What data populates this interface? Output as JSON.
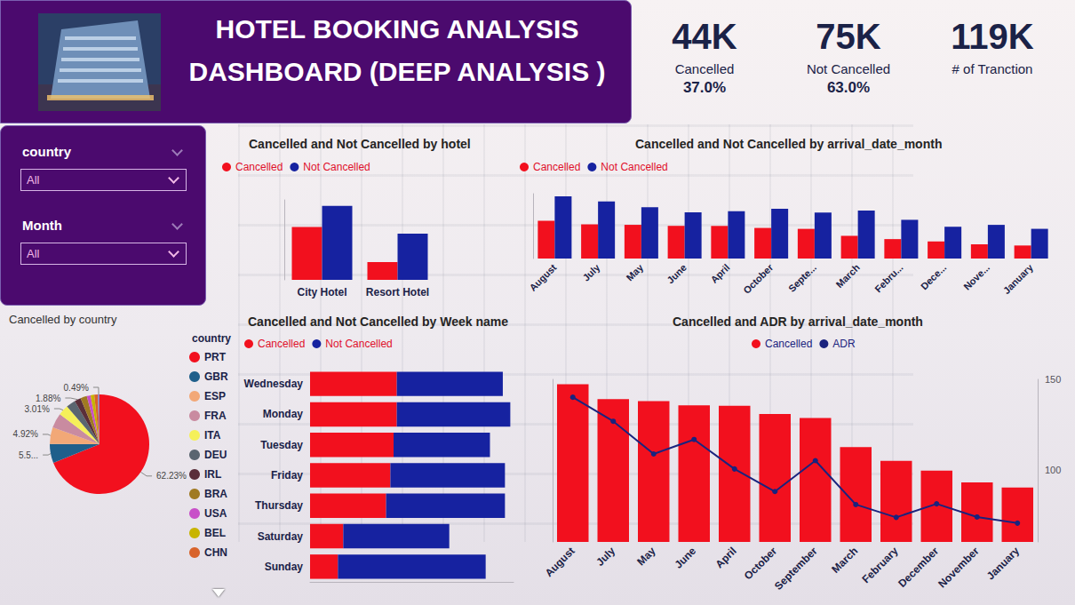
{
  "header": {
    "title": "HOTEL BOOKING ANALYSIS DASHBOARD (DEEP ANALYSIS )"
  },
  "kpis": [
    {
      "value": "44K",
      "label": "Cancelled",
      "percent": "37.0%"
    },
    {
      "value": "75K",
      "label": "Not Cancelled",
      "percent": "63.0%"
    },
    {
      "value": "119K",
      "label": "# of Tranction"
    }
  ],
  "filters": [
    {
      "label": "country",
      "selected": "All"
    },
    {
      "label": "Month",
      "selected": "All"
    }
  ],
  "chart_data": [
    {
      "type": "bar",
      "title": "Cancelled and Not Cancelled by hotel",
      "categories": [
        "City Hotel",
        "Resort Hotel"
      ],
      "series": [
        {
          "name": "Cancelled",
          "color": "#f2101e",
          "values": [
            33102,
            11122
          ]
        },
        {
          "name": "Not Cancelled",
          "color": "#1622a0",
          "values": [
            46228,
            28938
          ]
        }
      ],
      "ylim": [
        0,
        50000
      ],
      "yticks": [],
      "grid": false,
      "legend": "top-left"
    },
    {
      "type": "bar",
      "title": "Cancelled and Not Cancelled by arrival_date_month",
      "categories": [
        "August",
        "July",
        "May",
        "June",
        "April",
        "October",
        "Septe...",
        "March",
        "Febru...",
        "Dece...",
        "Nove...",
        "January"
      ],
      "series": [
        {
          "name": "Cancelled",
          "color": "#f2101e",
          "values": [
            5239,
            4742,
            4677,
            4535,
            4524,
            4246,
            4116,
            3149,
            2696,
            2371,
            1976,
            1807
          ]
        },
        {
          "name": "Not Cancelled",
          "color": "#1622a0",
          "values": [
            8638,
            7919,
            7114,
            6404,
            6565,
            6914,
            6392,
            6645,
            5372,
            4409,
            4672,
            4122
          ]
        }
      ],
      "ylim": [
        0,
        9000
      ],
      "yticks": [],
      "grid": false,
      "legend": "top-left"
    },
    {
      "type": "bar",
      "title": "Cancelled and Not Cancelled by Week name",
      "orientation": "horizontal",
      "stacked": true,
      "categories": [
        "Wednesday",
        "Monday",
        "Tuesday",
        "Friday",
        "Thursday",
        "Saturday",
        "Sunday"
      ],
      "series": [
        {
          "name": "Cancelled",
          "color": "#f2101e",
          "values": [
            8100,
            8100,
            7800,
            7500,
            7100,
            3100,
            2600
          ]
        },
        {
          "name": "Not Cancelled",
          "color": "#1622a0",
          "values": [
            9900,
            10600,
            9000,
            10700,
            11100,
            9900,
            13800
          ]
        }
      ],
      "xlim": [
        0,
        19000
      ],
      "xticks": [],
      "grid": false,
      "legend": "top-left"
    },
    {
      "type": "bar",
      "title": "Cancelled and ADR by arrival_date_month",
      "categories": [
        "August",
        "July",
        "May",
        "June",
        "April",
        "October",
        "September",
        "March",
        "February",
        "December",
        "November",
        "January"
      ],
      "series": [
        {
          "name": "Cancelled",
          "type": "bar",
          "color": "#f2101e",
          "values": [
            5239,
            4742,
            4677,
            4535,
            4524,
            4246,
            4116,
            3149,
            2696,
            2371,
            1976,
            1807
          ]
        },
        {
          "name": "ADR",
          "type": "line",
          "axis": "y2",
          "color": "#1a237e",
          "marker": "circle",
          "line_style": "solid",
          "values": [
            140.1,
            126.8,
            108.7,
            116.7,
            100.4,
            87.9,
            105.0,
            80.7,
            73.6,
            81.1,
            73.8,
            70.4
          ]
        }
      ],
      "ylim": [
        0,
        5400
      ],
      "yticks": [],
      "y2lim": [
        60,
        150
      ],
      "y2ticks": [
        100,
        150
      ],
      "grid": false,
      "legend": "top-left"
    },
    {
      "type": "pie",
      "title": "Cancelled by country",
      "legend_title": "country",
      "categories": [
        "PRT",
        "GBR",
        "ESP",
        "FRA",
        "ITA",
        "DEU",
        "IRL",
        "BRA",
        "USA",
        "BEL",
        "CHN",
        null
      ],
      "values": [
        62.23,
        5.55,
        4.92,
        4.37,
        3.01,
        2.75,
        1.88,
        1.88,
        1.13,
        1.07,
        1.04,
        0.49
      ],
      "value_labels": [
        "62.23%",
        "5.5...",
        "4.92%",
        null,
        "3.01%",
        null,
        "1.88%",
        null,
        null,
        null,
        null,
        "0.49%"
      ],
      "colors": [
        "#f2101e",
        "#1f5f8b",
        "#f2a877",
        "#c98ba0",
        "#f5f05a",
        "#5a6570",
        "#5a2e3a",
        "#a07a22",
        "#c84fc8",
        "#c8b400",
        "#d8632b",
        "#8a7fc0"
      ],
      "data_labels": true,
      "legend": "right"
    }
  ]
}
